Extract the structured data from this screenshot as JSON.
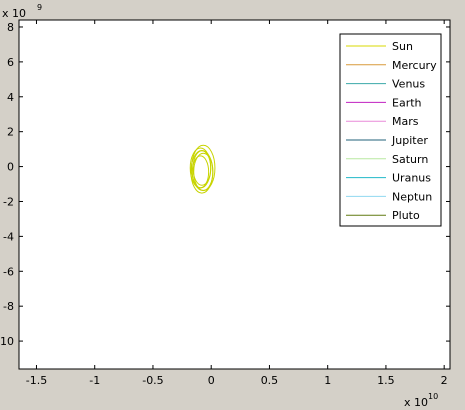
{
  "window": {
    "background": "#d4d0c8"
  },
  "chart_data": {
    "type": "line",
    "title": "",
    "xlabel": "",
    "ylabel": "",
    "x_exponent_label": "x 10",
    "x_exponent": "10",
    "y_exponent_label": "x 10",
    "y_exponent": "9",
    "xlim": [
      -1.65,
      2.05
    ],
    "ylim": [
      -11.6,
      8.4
    ],
    "xticks": [
      -1.5,
      -1,
      -0.5,
      0,
      0.5,
      1,
      1.5,
      2
    ],
    "xtick_labels": [
      "-1.5",
      "-1",
      "-0.5",
      "0",
      "0.5",
      "1",
      "1.5",
      "2"
    ],
    "yticks": [
      8,
      6,
      4,
      2,
      0,
      -2,
      -4,
      -6,
      -8,
      -10
    ],
    "ytick_labels": [
      "8",
      "6",
      "4",
      "2",
      "0",
      "-2",
      "-4",
      "-6",
      "-8",
      "-10"
    ],
    "grid": false,
    "legend_position": "top-right",
    "orbit": {
      "center_x": -0.08,
      "center_y": -0.2,
      "radius_x": 0.1,
      "radius_y": 1.3,
      "loops": 6,
      "color": "#c8d400"
    },
    "series": [
      {
        "name": "Sun",
        "color": "#d8d800"
      },
      {
        "name": "Mercury",
        "color": "#d89a3a"
      },
      {
        "name": "Venus",
        "color": "#3aa8a8"
      },
      {
        "name": "Earth",
        "color": "#c020c0"
      },
      {
        "name": "Mars",
        "color": "#e88ad8"
      },
      {
        "name": "Jupiter",
        "color": "#20607a"
      },
      {
        "name": "Saturn",
        "color": "#b8e8a0"
      },
      {
        "name": "Uranus",
        "color": "#20b8c8"
      },
      {
        "name": "Neptun",
        "color": "#90d8f0"
      },
      {
        "name": "Pluto",
        "color": "#607a10"
      }
    ]
  }
}
